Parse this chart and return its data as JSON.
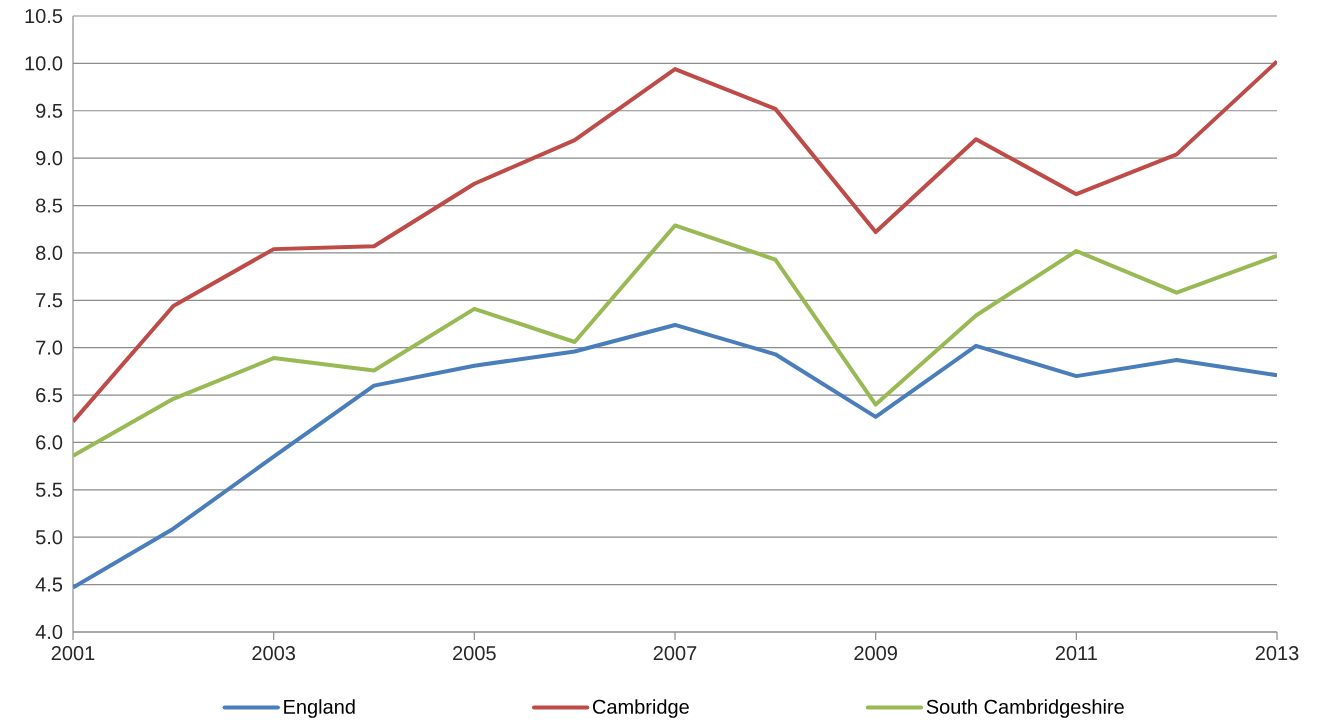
{
  "chart_data": {
    "type": "line",
    "x": [
      2001,
      2002,
      2003,
      2004,
      2005,
      2006,
      2007,
      2008,
      2009,
      2010,
      2011,
      2012,
      2013
    ],
    "series": [
      {
        "name": "England",
        "color": "#4a7ebb",
        "values": [
          4.47,
          5.09,
          5.85,
          6.6,
          6.81,
          6.96,
          7.24,
          6.93,
          6.27,
          7.02,
          6.7,
          6.87,
          6.71
        ]
      },
      {
        "name": "Cambridge",
        "color": "#be4b48",
        "values": [
          6.22,
          7.44,
          8.04,
          8.07,
          8.73,
          9.19,
          9.94,
          9.52,
          8.22,
          9.2,
          8.62,
          9.04,
          10.02
        ]
      },
      {
        "name": "South Cambridgeshire",
        "color": "#98b954",
        "values": [
          5.86,
          6.46,
          6.89,
          6.76,
          7.41,
          7.06,
          8.29,
          7.93,
          6.4,
          7.34,
          8.02,
          7.58,
          7.97
        ]
      }
    ],
    "xlim": [
      2001,
      2013
    ],
    "xticks": [
      2001,
      2003,
      2005,
      2007,
      2009,
      2011,
      2013
    ],
    "ylim": [
      4,
      10.5
    ],
    "yticks": [
      {
        "value": 4,
        "label": "4.0"
      },
      {
        "value": 4.5,
        "label": "4.5"
      },
      {
        "value": 5,
        "label": "5.0"
      },
      {
        "value": 5.5,
        "label": "5.5"
      },
      {
        "value": 6,
        "label": "6.0"
      },
      {
        "value": 6.5,
        "label": "6.5"
      },
      {
        "value": 7,
        "label": "7.0"
      },
      {
        "value": 7.5,
        "label": "7.5"
      },
      {
        "value": 8,
        "label": "8.0"
      },
      {
        "value": 8.5,
        "label": "8.5"
      },
      {
        "value": 9,
        "label": "9.0"
      },
      {
        "value": 9.5,
        "label": "9.5"
      },
      {
        "value": 10,
        "label": "10.0"
      },
      {
        "value": 10.5,
        "label": "10.5"
      }
    ],
    "grid": "y",
    "legend": "bottom",
    "marker": "none",
    "line_style": "solid"
  }
}
